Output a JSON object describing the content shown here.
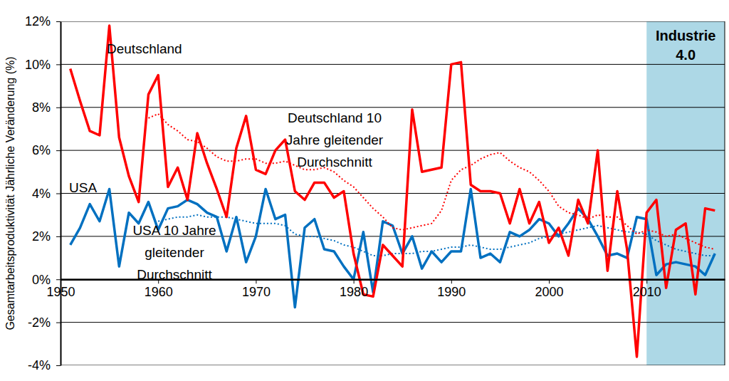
{
  "chart_data": {
    "type": "line",
    "y_label": "Gesamtarbeitsproduktivität Jährliche Veränderung (%)",
    "x": [
      1951,
      1952,
      1953,
      1954,
      1955,
      1956,
      1957,
      1958,
      1959,
      1960,
      1961,
      1962,
      1963,
      1964,
      1965,
      1966,
      1967,
      1968,
      1969,
      1970,
      1971,
      1972,
      1973,
      1974,
      1975,
      1976,
      1977,
      1978,
      1979,
      1980,
      1981,
      1982,
      1983,
      1984,
      1985,
      1986,
      1987,
      1988,
      1989,
      1990,
      1991,
      1992,
      1993,
      1994,
      1995,
      1996,
      1997,
      1998,
      1999,
      2000,
      2001,
      2002,
      2003,
      2004,
      2005,
      2006,
      2007,
      2008,
      2009,
      2010,
      2011,
      2012,
      2013,
      2014,
      2015,
      2016,
      2017
    ],
    "series": [
      {
        "name": "Deutschland",
        "color": "#ff0000",
        "line_style": "solid",
        "values": [
          9.8,
          8.3,
          6.9,
          6.7,
          11.8,
          6.6,
          4.8,
          3.6,
          8.6,
          9.5,
          4.3,
          5.2,
          3.7,
          6.8,
          5.4,
          4.2,
          2.9,
          6.1,
          7.6,
          5.1,
          4.9,
          6.0,
          6.5,
          4.1,
          3.7,
          4.5,
          4.5,
          3.8,
          4.1,
          1.2,
          -0.7,
          -0.8,
          1.6,
          1.1,
          0.6,
          7.9,
          5.0,
          5.1,
          5.2,
          10.0,
          10.1,
          4.4,
          4.1,
          4.1,
          4.0,
          2.6,
          4.2,
          2.6,
          3.6,
          1.7,
          2.4,
          1.1,
          3.7,
          2.6,
          6.0,
          0.4,
          4.1,
          1.4,
          -3.6,
          3.1,
          3.7,
          -0.4,
          2.3,
          2.6,
          -0.7,
          3.3,
          3.2
        ]
      },
      {
        "name": "Deutschland 10\nJahre gleitender\nDurchschnitt",
        "color": "#ff0000",
        "line_style": "dotted",
        "values": [
          null,
          null,
          null,
          null,
          null,
          null,
          null,
          null,
          7.5,
          7.7,
          7.2,
          6.9,
          6.5,
          6.4,
          6.1,
          5.7,
          5.5,
          5.5,
          5.6,
          5.6,
          5.4,
          5.4,
          5.5,
          5.3,
          5.1,
          5.1,
          5.2,
          5.0,
          4.6,
          4.3,
          3.8,
          3.3,
          2.9,
          2.4,
          2.3,
          2.4,
          2.5,
          2.6,
          3.2,
          4.6,
          5.1,
          5.3,
          5.6,
          5.8,
          5.9,
          5.5,
          5.2,
          5.0,
          4.6,
          4.1,
          3.4,
          3.1,
          3.0,
          2.8,
          3.0,
          2.9,
          2.9,
          2.5,
          2.1,
          2.3,
          2.2,
          2.0,
          2.1,
          1.9,
          1.7,
          1.5,
          1.4
        ]
      },
      {
        "name": "USA",
        "color": "#0070c0",
        "line_style": "solid",
        "values": [
          1.6,
          2.4,
          3.5,
          2.7,
          4.2,
          0.6,
          3.1,
          2.6,
          3.6,
          2.3,
          3.3,
          3.4,
          3.7,
          3.5,
          3.1,
          2.9,
          1.3,
          2.9,
          0.8,
          2.0,
          4.2,
          2.8,
          3.0,
          -1.3,
          2.4,
          2.8,
          1.4,
          1.3,
          0.6,
          0.0,
          2.2,
          -0.6,
          2.7,
          2.5,
          1.2,
          2.0,
          0.5,
          1.3,
          0.8,
          1.3,
          1.3,
          4.2,
          1.0,
          1.2,
          0.8,
          2.2,
          2.0,
          2.3,
          2.8,
          2.6,
          2.0,
          2.6,
          3.3,
          2.8,
          2.0,
          1.1,
          1.2,
          1.0,
          2.9,
          2.8,
          0.2,
          0.7,
          0.8,
          0.7,
          0.6,
          0.2,
          1.2
        ]
      },
      {
        "name": "USA 10 Jahre\ngleitender\nDurchschnitt",
        "color": "#0070c0",
        "line_style": "dotted",
        "values": [
          null,
          null,
          null,
          null,
          null,
          null,
          null,
          null,
          null,
          2.7,
          2.8,
          2.9,
          2.9,
          3.0,
          2.9,
          2.9,
          2.9,
          2.8,
          2.7,
          2.6,
          2.6,
          2.6,
          2.5,
          2.1,
          2.0,
          2.0,
          1.9,
          1.8,
          1.6,
          1.5,
          1.3,
          1.1,
          1.1,
          1.2,
          1.2,
          1.2,
          1.3,
          1.3,
          1.4,
          1.5,
          1.5,
          1.6,
          1.5,
          1.4,
          1.4,
          1.5,
          1.6,
          1.7,
          1.9,
          2.0,
          2.1,
          2.2,
          2.3,
          2.4,
          2.5,
          2.4,
          2.3,
          2.2,
          2.2,
          2.1,
          1.8,
          1.6,
          1.4,
          1.3,
          1.2,
          1.1,
          1.1
        ]
      }
    ],
    "shaded_region": {
      "from": 2010,
      "to": 2018,
      "label": "Industrie\n4.0",
      "color": "#add8e6"
    },
    "xlim": [
      1950,
      2018
    ],
    "xticks": [
      1950,
      1960,
      1970,
      1980,
      1990,
      2000,
      2010
    ],
    "ylim": [
      -4,
      12
    ],
    "yticks": [
      {
        "value": -4,
        "label": "-4%"
      },
      {
        "value": -2,
        "label": "-2%"
      },
      {
        "value": 0,
        "label": "0%"
      },
      {
        "value": 2,
        "label": "2%"
      },
      {
        "value": 4,
        "label": "4%"
      },
      {
        "value": 6,
        "label": "6%"
      },
      {
        "value": 8,
        "label": "8%"
      },
      {
        "value": 10,
        "label": "10%"
      },
      {
        "value": 12,
        "label": "12%"
      }
    ],
    "grid": true
  }
}
